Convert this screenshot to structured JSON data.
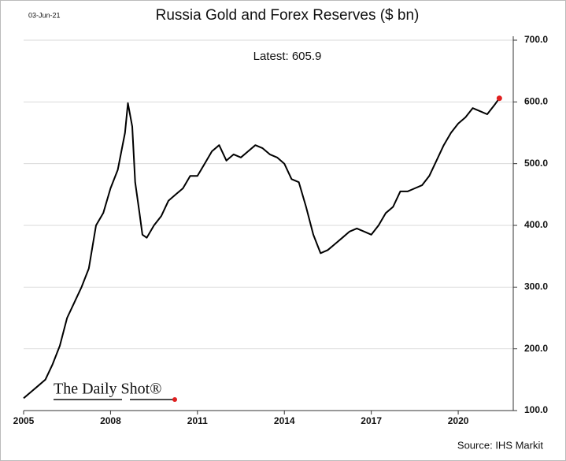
{
  "chart_data": {
    "type": "line",
    "date": "03-Jun-21",
    "title": "Russia Gold and Forex Reserves ($ bn)",
    "annotation": "Latest:  605.9",
    "logo": "The Daily Shot®",
    "source": "Source: IHS Markit",
    "color": "#000000",
    "latest_color": "#e02020",
    "grid": true,
    "xlim": [
      2005,
      2021.9
    ],
    "ylim": [
      100,
      700
    ],
    "xticks": [
      2005,
      2008,
      2011,
      2014,
      2017,
      2020
    ],
    "yticks": [
      {
        "value": 100,
        "label": "100.0"
      },
      {
        "value": 200,
        "label": "200.0"
      },
      {
        "value": 300,
        "label": "300.0"
      },
      {
        "value": 400,
        "label": "400.0"
      },
      {
        "value": 500,
        "label": "500.0"
      },
      {
        "value": 600,
        "label": "600.0"
      },
      {
        "value": 700,
        "label": "700.0"
      }
    ],
    "x": [
      2005.0,
      2005.25,
      2005.5,
      2005.75,
      2006.0,
      2006.25,
      2006.5,
      2006.75,
      2007.0,
      2007.25,
      2007.5,
      2007.75,
      2008.0,
      2008.25,
      2008.5,
      2008.6,
      2008.75,
      2008.85,
      2009.0,
      2009.1,
      2009.25,
      2009.5,
      2009.75,
      2010.0,
      2010.25,
      2010.5,
      2010.75,
      2011.0,
      2011.25,
      2011.5,
      2011.75,
      2012.0,
      2012.25,
      2012.5,
      2012.75,
      2013.0,
      2013.25,
      2013.5,
      2013.75,
      2014.0,
      2014.25,
      2014.5,
      2014.75,
      2015.0,
      2015.25,
      2015.5,
      2015.75,
      2016.0,
      2016.25,
      2016.5,
      2016.75,
      2017.0,
      2017.25,
      2017.5,
      2017.75,
      2018.0,
      2018.25,
      2018.5,
      2018.75,
      2019.0,
      2019.25,
      2019.5,
      2019.75,
      2020.0,
      2020.25,
      2020.5,
      2020.75,
      2021.0,
      2021.25,
      2021.42
    ],
    "values": [
      120,
      130,
      140,
      150,
      175,
      205,
      250,
      275,
      300,
      330,
      400,
      420,
      460,
      490,
      550,
      598,
      560,
      470,
      420,
      385,
      380,
      400,
      415,
      440,
      450,
      460,
      480,
      480,
      500,
      520,
      530,
      505,
      515,
      510,
      520,
      530,
      525,
      515,
      510,
      500,
      475,
      470,
      430,
      385,
      355,
      360,
      370,
      380,
      390,
      395,
      390,
      385,
      400,
      420,
      430,
      455,
      455,
      460,
      465,
      480,
      505,
      530,
      550,
      565,
      575,
      590,
      585,
      580,
      595,
      605.9
    ]
  }
}
